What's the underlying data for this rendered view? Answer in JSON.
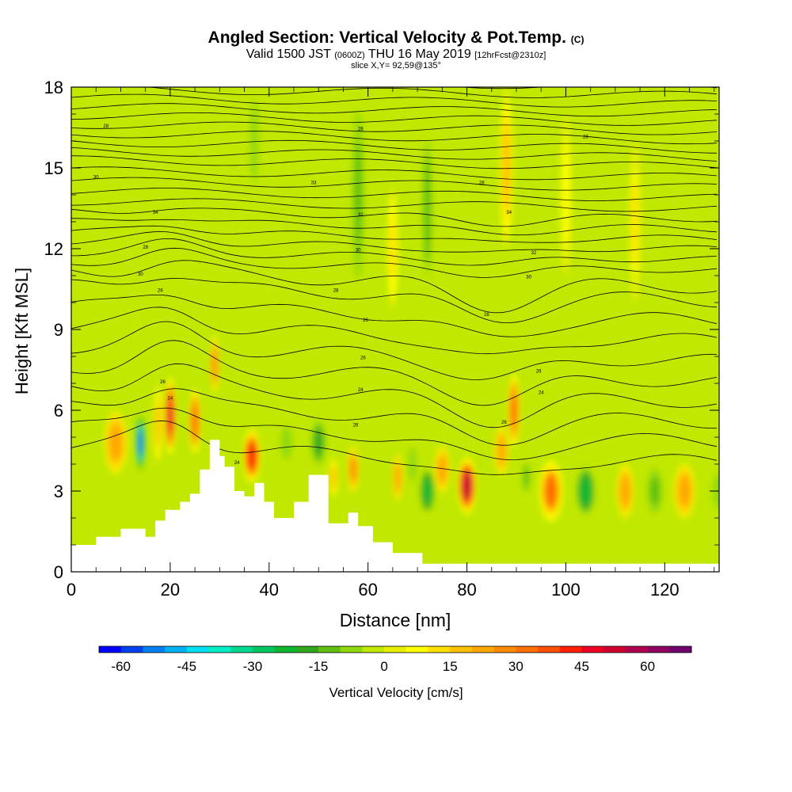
{
  "title": {
    "main": "Angled Section: Vertical Velocity & Pot.Temp.",
    "main_unit": "(C)",
    "valid_prefix": "Valid 1500 JST",
    "valid_utc": "(0600Z)",
    "valid_date": "THU 16 May 2019",
    "forecast": "[12hrFcst@2310z]",
    "slice": "slice X,Y= 92,59@135°"
  },
  "chart_data": {
    "type": "heatmap",
    "xlabel": "Distance [nm]",
    "ylabel": "Height [Kft MSL]",
    "xlim": [
      0,
      131
    ],
    "ylim": [
      0,
      18
    ],
    "x_ticks": [
      "0",
      "20",
      "40",
      "60",
      "80",
      "100",
      "120"
    ],
    "x_tick_values": [
      0,
      20,
      40,
      60,
      80,
      100,
      120
    ],
    "y_ticks": [
      "0",
      "3",
      "6",
      "9",
      "12",
      "15",
      "18"
    ],
    "y_tick_values": [
      0,
      3,
      6,
      9,
      12,
      15,
      18
    ],
    "colorbar": {
      "label": "Vertical Velocity [cm/s]",
      "tick_labels": [
        "-60",
        "-45",
        "-30",
        "-15",
        "0",
        "15",
        "30",
        "45",
        "60"
      ],
      "tick_values": [
        -60,
        -45,
        -30,
        -15,
        0,
        15,
        30,
        45,
        60
      ],
      "range": [
        -65,
        70
      ],
      "step": 5,
      "colors": [
        "#0000ff",
        "#0040f0",
        "#0080f0",
        "#00b0f0",
        "#00e0f0",
        "#00f0c8",
        "#00d890",
        "#00c860",
        "#10b830",
        "#30a820",
        "#60c010",
        "#90d810",
        "#c0e800",
        "#e8f000",
        "#ffff00",
        "#ffe000",
        "#ffc000",
        "#ffa800",
        "#ff8c00",
        "#ff7000",
        "#ff5000",
        "#ff2000",
        "#f00020",
        "#d00030",
        "#b00050",
        "#900060",
        "#700070"
      ]
    },
    "terrain": {
      "x": [
        0,
        5,
        5,
        10,
        10,
        15,
        15,
        17,
        17,
        19,
        19,
        22,
        22,
        24,
        24,
        26,
        26,
        28,
        28,
        30,
        30,
        31,
        31,
        33,
        33,
        35,
        35,
        37,
        37,
        39,
        39,
        41,
        41,
        45,
        45,
        48,
        48,
        52,
        52,
        56,
        56,
        58,
        58,
        61,
        61,
        65,
        65,
        69,
        69,
        71,
        71,
        73,
        73,
        131
      ],
      "y": [
        1.0,
        1.0,
        1.3,
        1.3,
        1.6,
        1.6,
        1.3,
        1.3,
        1.9,
        1.9,
        2.3,
        2.3,
        2.6,
        2.6,
        2.9,
        2.9,
        3.8,
        3.8,
        4.9,
        4.9,
        4.3,
        4.3,
        3.9,
        3.9,
        3.0,
        3.0,
        2.8,
        2.8,
        3.3,
        3.3,
        2.6,
        2.6,
        2.0,
        2.0,
        2.6,
        2.6,
        3.6,
        3.6,
        1.8,
        1.8,
        2.2,
        2.2,
        1.7,
        1.7,
        1.1,
        1.1,
        0.7,
        0.7,
        0.7,
        0.7,
        0.3,
        0.3,
        0.3,
        0.3
      ]
    },
    "updrafts": [
      [
        9,
        4.8,
        3.2,
        1.6,
        28
      ],
      [
        14,
        4.8,
        1.3,
        1.4,
        -58
      ],
      [
        17.5,
        5.5,
        1.2,
        2,
        20
      ],
      [
        20,
        5.8,
        1.6,
        1.9,
        52
      ],
      [
        25,
        5.6,
        1.5,
        1.6,
        40
      ],
      [
        29,
        7.7,
        1.2,
        1.5,
        32
      ],
      [
        36.5,
        4.3,
        2.4,
        1.3,
        48
      ],
      [
        43.5,
        4.8,
        2.2,
        1.2,
        -8
      ],
      [
        50,
        4.8,
        2.2,
        1.3,
        -22
      ],
      [
        53,
        3.5,
        1.3,
        1,
        18
      ],
      [
        57,
        3.8,
        1.6,
        1.2,
        30
      ],
      [
        66,
        3.5,
        1.4,
        1.2,
        25
      ],
      [
        69,
        4,
        1.6,
        1.3,
        -8
      ],
      [
        72,
        3.0,
        2.2,
        1.2,
        -28
      ],
      [
        75,
        3.8,
        2.2,
        1.2,
        28
      ],
      [
        80,
        3.2,
        2.6,
        1.4,
        58
      ],
      [
        84,
        4.5,
        2.2,
        1.1,
        -5
      ],
      [
        87,
        4.5,
        1.9,
        1.3,
        25
      ],
      [
        89.5,
        6,
        1.6,
        1.8,
        38
      ],
      [
        92,
        3.5,
        1.4,
        1.1,
        -12
      ],
      [
        97,
        3,
        3.2,
        1.5,
        35
      ],
      [
        104,
        3,
        3.0,
        1.4,
        -25
      ],
      [
        112,
        3,
        2.4,
        1.4,
        28
      ],
      [
        118,
        3,
        2.4,
        1.3,
        -15
      ],
      [
        124,
        3,
        3.0,
        1.4,
        28
      ],
      [
        131,
        3,
        2.5,
        1.3,
        -8
      ],
      [
        58,
        14,
        1.8,
        5,
        -15
      ],
      [
        72,
        13.5,
        1.8,
        5,
        -12
      ],
      [
        88,
        15,
        1.8,
        4,
        22
      ],
      [
        37,
        16,
        1.5,
        3,
        -10
      ],
      [
        100,
        14,
        1.5,
        4,
        8
      ],
      [
        114,
        13,
        1.5,
        4,
        12
      ],
      [
        65,
        12,
        1.5,
        3,
        15
      ]
    ],
    "isentropes": {
      "levels": [
        22,
        23,
        24,
        25,
        26,
        27,
        28,
        29,
        30,
        31,
        32,
        33,
        34,
        35,
        36,
        37,
        38,
        39,
        40,
        41,
        42,
        43,
        44,
        45,
        46,
        47,
        48,
        49,
        50,
        51,
        52,
        53,
        54,
        55,
        56,
        57,
        58
      ],
      "labeled_levels": [
        24,
        26,
        28,
        30,
        32,
        34,
        36,
        38
      ],
      "labels": [
        {
          "x": 18.5,
          "y": 7.0,
          "text": "26"
        },
        {
          "x": 20,
          "y": 6.4,
          "text": "24"
        },
        {
          "x": 33.5,
          "y": 4.0,
          "text": "24"
        },
        {
          "x": 57.5,
          "y": 5.4,
          "text": "26"
        },
        {
          "x": 58.5,
          "y": 6.7,
          "text": "24"
        },
        {
          "x": 59,
          "y": 7.9,
          "text": "26"
        },
        {
          "x": 59.5,
          "y": 9.3,
          "text": "26"
        },
        {
          "x": 53.5,
          "y": 10.4,
          "text": "28"
        },
        {
          "x": 58,
          "y": 11.9,
          "text": "30"
        },
        {
          "x": 58.5,
          "y": 13.2,
          "text": "32"
        },
        {
          "x": 49,
          "y": 14.4,
          "text": "33"
        },
        {
          "x": 58.5,
          "y": 16.4,
          "text": "28"
        },
        {
          "x": 7,
          "y": 16.5,
          "text": "28"
        },
        {
          "x": 5,
          "y": 14.6,
          "text": "30"
        },
        {
          "x": 17,
          "y": 13.3,
          "text": "34"
        },
        {
          "x": 15,
          "y": 12.0,
          "text": "28"
        },
        {
          "x": 14,
          "y": 11.0,
          "text": "30"
        },
        {
          "x": 18,
          "y": 10.4,
          "text": "26"
        },
        {
          "x": 83,
          "y": 14.4,
          "text": "28"
        },
        {
          "x": 88.5,
          "y": 13.3,
          "text": "34"
        },
        {
          "x": 93.5,
          "y": 11.8,
          "text": "32"
        },
        {
          "x": 92.5,
          "y": 10.9,
          "text": "30"
        },
        {
          "x": 84,
          "y": 9.5,
          "text": "26"
        },
        {
          "x": 94.5,
          "y": 7.4,
          "text": "26"
        },
        {
          "x": 95,
          "y": 6.6,
          "text": "24"
        },
        {
          "x": 87.5,
          "y": 5.5,
          "text": "26"
        },
        {
          "x": 104,
          "y": 16.1,
          "text": "28"
        }
      ]
    }
  }
}
